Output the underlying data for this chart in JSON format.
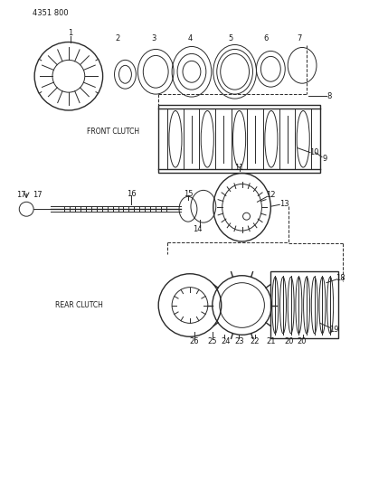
{
  "title": "4351 800",
  "background_color": "#ffffff",
  "line_color": "#2a2a2a",
  "label_color": "#1a1a1a",
  "front_clutch_label": "FRONT CLUTCH",
  "rear_clutch_label": "REAR CLUTCH",
  "figsize": [
    4.08,
    5.33
  ],
  "dpi": 100
}
